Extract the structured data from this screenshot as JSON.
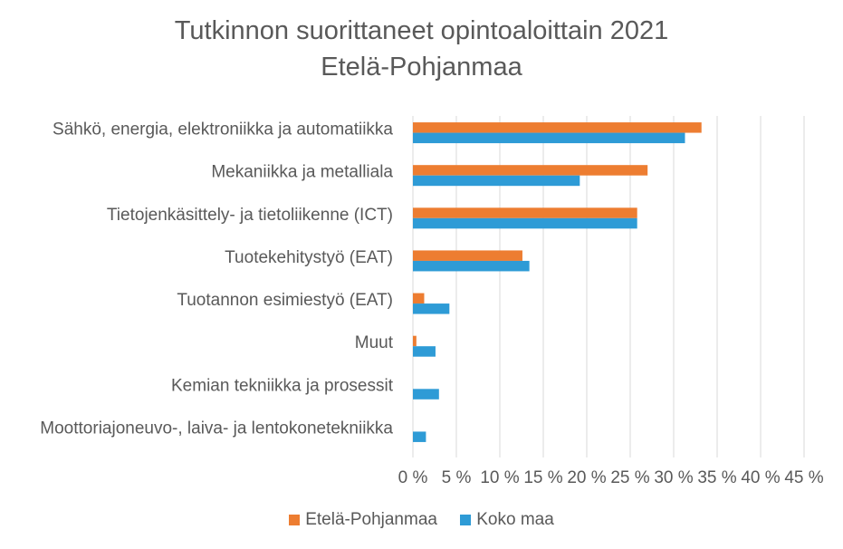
{
  "chart_data": {
    "type": "bar",
    "orientation": "horizontal",
    "title": "Tutkinnon suorittaneet opintoaloittain 2021",
    "subtitle": "Etelä-Pohjanmaa",
    "categories": [
      "Sähkö, energia, elektroniikka ja automatiikka",
      "Mekaniikka ja metalliala",
      "Tietojenkäsittely- ja tietoliikenne (ICT)",
      "Tuotekehitystyö (EAT)",
      "Tuotannon esimiestyö (EAT)",
      "Muut",
      "Kemian tekniikka ja prosessit",
      "Moottoriajoneuvo-, laiva- ja lentokonetekniikka"
    ],
    "series": [
      {
        "name": "Etelä-Pohjanmaa",
        "color": "#ED7D31",
        "values": [
          33.2,
          27.0,
          25.8,
          12.6,
          1.3,
          0.4,
          0,
          0
        ]
      },
      {
        "name": "Koko maa",
        "color": "#2E9BD6",
        "values": [
          31.3,
          19.2,
          25.8,
          13.4,
          4.2,
          2.6,
          3.0,
          1.5
        ]
      }
    ],
    "xlim": [
      0,
      45
    ],
    "xticks": [
      "0 %",
      "5 %",
      "10 %",
      "15 %",
      "20 %",
      "25 %",
      "30 %",
      "35 %",
      "40 %",
      "45 %"
    ],
    "xticks_values": [
      0,
      5,
      10,
      15,
      20,
      25,
      30,
      35,
      40,
      45
    ],
    "grid": true,
    "legend_position": "bottom"
  }
}
